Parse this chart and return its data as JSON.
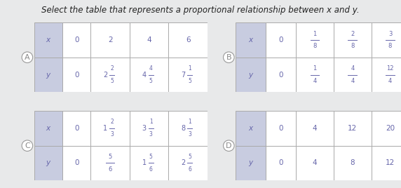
{
  "title": "Select the table that represents a proportional relationship between x and y.",
  "bg_color": "#e8e8e8",
  "text_color": "#6666aa",
  "cell_bg": "#ffffff",
  "header_bg": "#c8cce0",
  "border_color": "#aaaaaa",
  "circle_color": "#aaaaaa",
  "tables": {
    "A": {
      "label": "A",
      "x_row": [
        "x",
        "0",
        "2",
        "4",
        "6"
      ],
      "y_row_top": [
        "y",
        "0",
        "2",
        "4",
        "7"
      ],
      "y_row_bot": [
        "",
        "",
        "2/5",
        "4/5",
        "1/5"
      ],
      "y_simple": [
        "y",
        "0",
        "2 2/5",
        "4 4/5",
        "7 1/5"
      ]
    },
    "B": {
      "label": "B",
      "x_row_top": [
        "x",
        "0",
        "1",
        "2",
        "3"
      ],
      "x_row_bot": [
        "",
        "",
        "8",
        "8",
        "8"
      ],
      "y_row_top": [
        "y",
        "0",
        "1",
        "4",
        "12"
      ],
      "y_row_bot": [
        "",
        "",
        "4",
        "4",
        "4"
      ]
    },
    "C": {
      "label": "C",
      "x_row": [
        "x",
        "0",
        "1 2/3",
        "3 1/3",
        "8 1/3"
      ],
      "y_row_top": [
        "y",
        "0",
        "5",
        "1",
        "2"
      ],
      "y_row_bot": [
        "",
        "",
        "6",
        "5/6",
        "5/6"
      ]
    },
    "D": {
      "label": "D",
      "x_row": [
        "x",
        "0",
        "4",
        "12",
        "20"
      ],
      "y_row": [
        "y",
        "0",
        "4",
        "8",
        "12"
      ]
    }
  }
}
